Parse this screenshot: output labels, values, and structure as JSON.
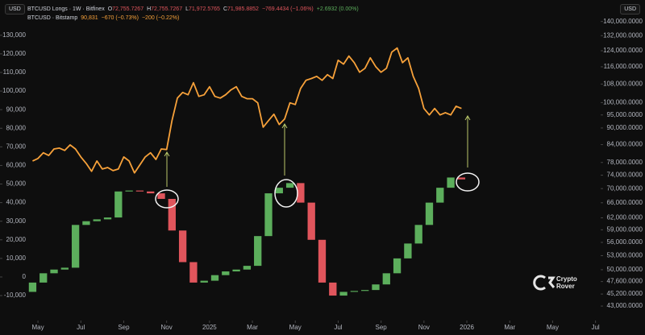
{
  "chart_data": {
    "type": "candlestick",
    "y_unit": "USD",
    "y2_unit": "USD",
    "watermark": [
      "Crypto",
      "Rover"
    ],
    "xlim": [
      -0.77,
      27.24
    ],
    "xticks": [
      {
        "value": 1,
        "label": "May"
      },
      {
        "value": 3,
        "label": "Jul"
      },
      {
        "value": 5,
        "label": "Sep"
      },
      {
        "value": 7,
        "label": "Nov"
      },
      {
        "value": 9,
        "label": "2025"
      },
      {
        "value": 11,
        "label": "Mar"
      },
      {
        "value": 13,
        "label": "May"
      },
      {
        "value": 15,
        "label": "Jul"
      },
      {
        "value": 17,
        "label": "Sep"
      },
      {
        "value": 19,
        "label": "Nov"
      },
      {
        "value": 21,
        "label": "2026"
      },
      {
        "value": 23,
        "label": "Mar"
      },
      {
        "value": 25,
        "label": "May"
      },
      {
        "value": 27,
        "label": "Jul"
      }
    ],
    "ylim": [
      -23400,
      145500
    ],
    "yticks": [
      {
        "value": 130000,
        "label": "130,000"
      },
      {
        "value": 120000,
        "label": "120,000"
      },
      {
        "value": 110000,
        "label": "110,000"
      },
      {
        "value": 100000,
        "label": "100,000"
      },
      {
        "value": 90000,
        "label": "90,000"
      },
      {
        "value": 80000,
        "label": "80,000"
      },
      {
        "value": 70000,
        "label": "70,000"
      },
      {
        "value": 60000,
        "label": "60,000"
      },
      {
        "value": 50000,
        "label": "50,000"
      },
      {
        "value": 40000,
        "label": "40,000"
      },
      {
        "value": 30000,
        "label": "30,000"
      },
      {
        "value": 20000,
        "label": "20,000"
      },
      {
        "value": 10000,
        "label": "10,000"
      },
      0,
      {
        "value": -10000,
        "label": "-10,000"
      }
    ],
    "y2lim": [
      40500,
      149000
    ],
    "y2_log": true,
    "y2ticks": [
      {
        "value": 140000,
        "label": "140,000.0000"
      },
      {
        "value": 132000,
        "label": "132,000.0000"
      },
      {
        "value": 124000,
        "label": "124,000.0000"
      },
      {
        "value": 116000,
        "label": "116,000.0000"
      },
      {
        "value": 108000,
        "label": "108,000.0000"
      },
      {
        "value": 100000,
        "label": "100,000.0000"
      },
      {
        "value": 95000,
        "label": "95,000.0000"
      },
      {
        "value": 90000,
        "label": "90,000.0000"
      },
      {
        "value": 84000,
        "label": "84,000.0000"
      },
      {
        "value": 78000,
        "label": "78,000.0000"
      },
      {
        "value": 74000,
        "label": "74,000.0000"
      },
      {
        "value": 70000,
        "label": "70,000.0000"
      },
      {
        "value": 66000,
        "label": "66,000.0000"
      },
      {
        "value": 62000,
        "label": "62,000.0000"
      },
      {
        "value": 59000,
        "label": "59,000.0000"
      },
      {
        "value": 56000,
        "label": "56,000.0000"
      },
      {
        "value": 53000,
        "label": "53,000.0000"
      },
      {
        "value": 50000,
        "label": "50,000.0000"
      },
      {
        "value": 47600,
        "label": "47,600.0000"
      },
      {
        "value": 45200,
        "label": "45,200.0000"
      },
      {
        "value": 43000,
        "label": "43,000.0000"
      }
    ],
    "series": [
      {
        "name": "BTCUSD Longs · 1W · Bitfinex",
        "type": "candlestick",
        "up_color": "#5cae5c",
        "down_color": "#e0555c",
        "stats": [
          {
            "label": "O",
            "value": "72,755.7267",
            "color": "#e0555c"
          },
          {
            "label": "H",
            "value": "72,755.7267",
            "color": "#e0555c"
          },
          {
            "label": "L",
            "value": "71,972.5765",
            "color": "#e0555c"
          },
          {
            "label": "C",
            "value": "71,985.8852",
            "color": "#e0555c"
          },
          {
            "value": "−769.4434 (−1.06%)",
            "color": "#e0555c"
          },
          {
            "value": "+2.6932 (0.00%)",
            "color": "#5cae5c"
          }
        ],
        "x": [
          0.75,
          1.25,
          1.75,
          2.25,
          2.75,
          3.25,
          3.75,
          4.25,
          4.75,
          5.25,
          5.75,
          6.25,
          6.75,
          7.25,
          7.75,
          8.25,
          8.75,
          9.25,
          9.75,
          10.25,
          10.75,
          11.25,
          11.75,
          12.25,
          12.75,
          13.25,
          13.75,
          14.25,
          14.75,
          15.25,
          15.75,
          16.25,
          16.75,
          17.25,
          17.75,
          18.25,
          18.75,
          19.25,
          19.75,
          20.25,
          20.75
        ],
        "open": [
          -8000,
          -3000,
          2000,
          4000,
          5000,
          28000,
          30000,
          31000,
          32000,
          46000,
          46500,
          46000,
          45000,
          42000,
          25000,
          8000,
          -3000,
          -2000,
          1000,
          3000,
          4000,
          6000,
          22000,
          45000,
          48000,
          50500,
          40000,
          20000,
          -3000,
          -10000,
          -8000,
          -7500,
          -7000,
          -4000,
          2000,
          10000,
          18000,
          28000,
          40000,
          48000,
          53500
        ],
        "close": [
          -3000,
          2000,
          4000,
          5000,
          28000,
          30000,
          31000,
          32000,
          46000,
          46500,
          46000,
          45000,
          42000,
          25000,
          8000,
          -3000,
          -2000,
          1000,
          3000,
          4000,
          6000,
          22000,
          45000,
          48000,
          50500,
          40000,
          20000,
          -3000,
          -10000,
          -8000,
          -7500,
          -7000,
          -4000,
          2000,
          10000,
          18000,
          28000,
          40000,
          48000,
          53500,
          52500
        ]
      },
      {
        "name": "BTCUSD · Bitstamp",
        "type": "line",
        "axis": "y2",
        "color": "#f7a13a",
        "stats": [
          {
            "value": "90,831",
            "color": "#f7a13a"
          },
          {
            "value": "−670 (−0.73%)",
            "color": "#f7a13a"
          },
          {
            "value": "−200 (−0.22%)",
            "color": "#f7a13a"
          }
        ],
        "x": [
          0.75,
          1.0,
          1.25,
          1.5,
          1.75,
          2.0,
          2.25,
          2.5,
          2.75,
          3.0,
          3.25,
          3.5,
          3.75,
          4.0,
          4.25,
          4.5,
          4.75,
          5.0,
          5.25,
          5.5,
          5.75,
          6.0,
          6.25,
          6.5,
          6.75,
          7.0,
          7.25,
          7.5,
          7.75,
          8.0,
          8.25,
          8.5,
          8.75,
          9.0,
          9.25,
          9.5,
          9.75,
          10.0,
          10.25,
          10.5,
          10.75,
          11.0,
          11.25,
          11.5,
          11.75,
          12.0,
          12.25,
          12.5,
          12.75,
          13.0,
          13.25,
          13.5,
          13.75,
          14.0,
          14.25,
          14.5,
          14.75,
          15.0,
          15.25,
          15.5,
          15.75,
          16.0,
          16.25,
          16.5,
          16.75,
          17.0,
          17.25,
          17.5,
          17.75,
          18.0,
          18.25,
          18.5,
          18.75,
          19.0,
          19.25,
          19.5,
          19.75,
          20.0,
          20.25,
          20.5,
          20.75
        ],
        "values": [
          78500,
          79300,
          81200,
          80300,
          82500,
          82800,
          82000,
          83900,
          82500,
          79800,
          77700,
          75200,
          78500,
          75900,
          76400,
          75400,
          75900,
          79800,
          78500,
          74700,
          77200,
          79800,
          81200,
          79000,
          82500,
          82300,
          92800,
          101900,
          104300,
          103300,
          108600,
          102600,
          103300,
          106800,
          102600,
          101900,
          103300,
          105400,
          106800,
          102600,
          101600,
          101600,
          99900,
          90300,
          92800,
          95300,
          91300,
          93400,
          99900,
          99200,
          106100,
          109700,
          110500,
          111500,
          109700,
          112300,
          110500,
          119200,
          117300,
          121300,
          118000,
          113400,
          115300,
          120400,
          116100,
          113400,
          115300,
          123300,
          125400,
          118000,
          120400,
          111500,
          106100,
          97600,
          95000,
          97600,
          95000,
          95900,
          95000,
          98500,
          97600
        ]
      }
    ]
  }
}
